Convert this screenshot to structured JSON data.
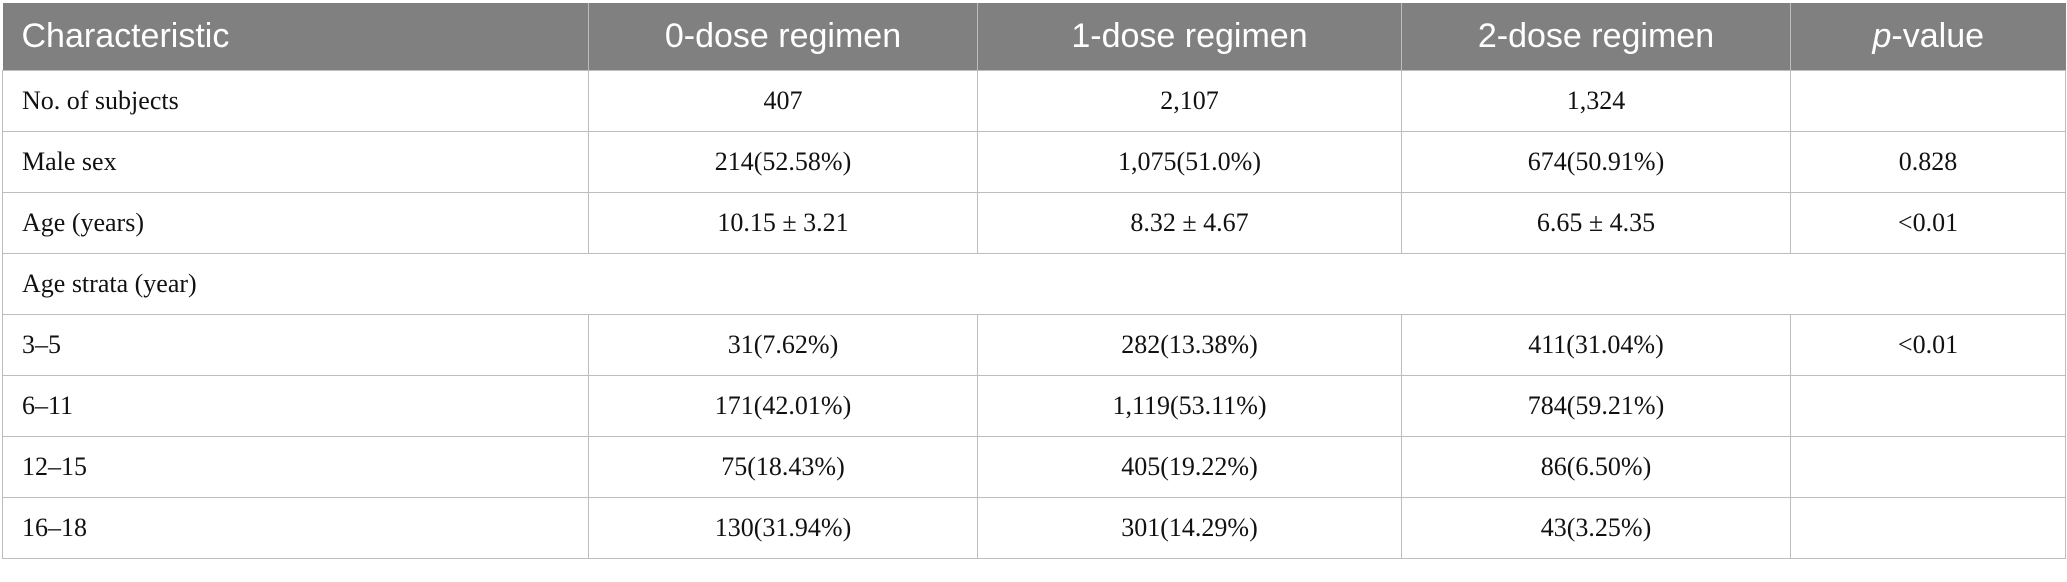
{
  "table": {
    "headers": [
      "Characteristic",
      "0-dose regimen",
      "1-dose regimen",
      "2-dose regimen"
    ],
    "pvalue_header_italic": "p",
    "pvalue_header_rest": "-value",
    "rows": [
      {
        "label": "No. of subjects",
        "c1": "407",
        "c2": "2,107",
        "c3": "1,324",
        "p": ""
      },
      {
        "label": "Male sex",
        "c1": "214(52.58%)",
        "c2": "1,075(51.0%)",
        "c3": "674(50.91%)",
        "p": "0.828"
      },
      {
        "label": "Age (years)",
        "c1": "10.15 ± 3.21",
        "c2": "8.32 ± 4.67",
        "c3": "6.65 ± 4.35",
        "p": "<0.01"
      },
      {
        "section": "Age strata (year)"
      },
      {
        "label": "3–5",
        "c1": "31(7.62%)",
        "c2": "282(13.38%)",
        "c3": "411(31.04%)",
        "p": "<0.01"
      },
      {
        "label": "6–11",
        "c1": "171(42.01%)",
        "c2": "1,119(53.11%)",
        "c3": "784(59.21%)",
        "p": ""
      },
      {
        "label": "12–15",
        "c1": "75(18.43%)",
        "c2": "405(19.22%)",
        "c3": "86(6.50%)",
        "p": ""
      },
      {
        "label": "16–18",
        "c1": "130(31.94%)",
        "c2": "301(14.29%)",
        "c3": "43(3.25%)",
        "p": ""
      }
    ]
  }
}
